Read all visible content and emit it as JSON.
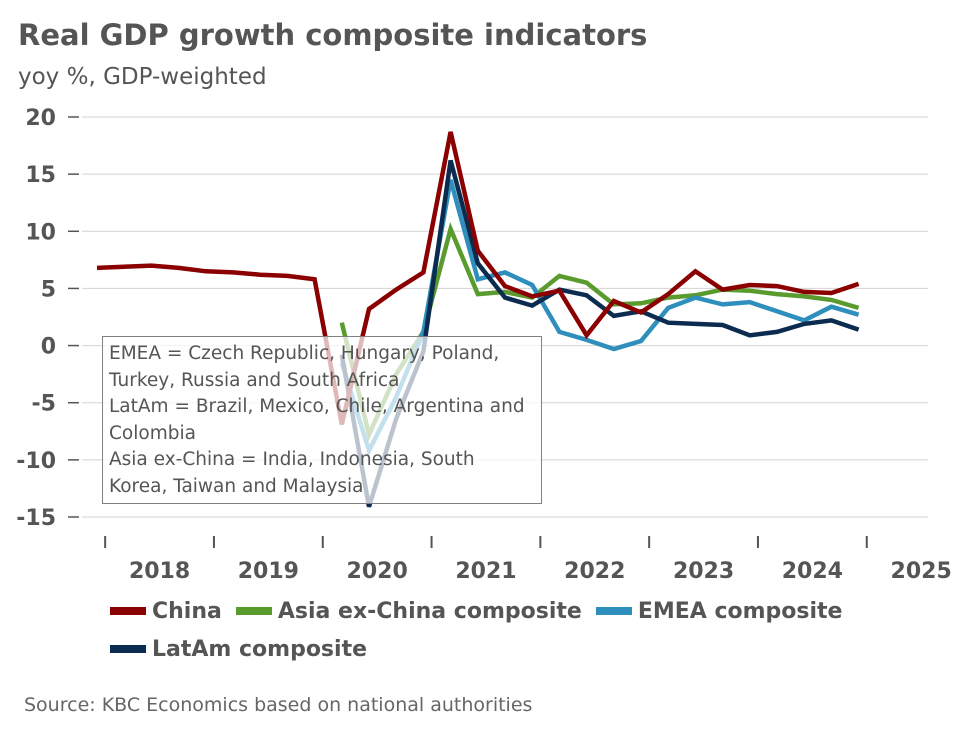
{
  "title": "Real GDP growth composite indicators",
  "subtitle": "yoy %, GDP-weighted",
  "source": "Source: KBC Economics based on national authorities",
  "note": [
    "EMEA = Czech Republic, Hungary, Poland,",
    "Turkey, Russia and South Africa",
    "LatAm = Brazil, Mexico, Chile, Argentina and",
    "Colombia",
    "Asia ex-China = India, Indonesia, South",
    "Korea, Taiwan and Malaysia"
  ],
  "chart_data": {
    "type": "line",
    "title": "Real GDP growth composite indicators",
    "subtitle": "yoy %, GDP-weighted",
    "ylim": [
      -15,
      20
    ],
    "yticks": [
      20,
      15,
      10,
      5,
      0,
      -5,
      -10,
      -15
    ],
    "ytick_labels": [
      "20",
      "15",
      "10",
      "5",
      "0",
      "-5",
      "-10",
      "-15"
    ],
    "x_labels": [
      "2018",
      "2019",
      "2020",
      "2021",
      "2022",
      "2023",
      "2024",
      "2025"
    ],
    "x_quarters": [
      "2017Q4",
      "2018Q1",
      "2018Q2",
      "2018Q3",
      "2018Q4",
      "2019Q1",
      "2019Q2",
      "2019Q3",
      "2019Q4",
      "2020Q1",
      "2020Q2",
      "2020Q3",
      "2020Q4",
      "2021Q1",
      "2021Q2",
      "2021Q3",
      "2021Q4",
      "2022Q1",
      "2022Q2",
      "2022Q3",
      "2022Q4",
      "2023Q1",
      "2023Q2",
      "2023Q3",
      "2023Q4",
      "2024Q1",
      "2024Q2",
      "2024Q3",
      "2024Q4"
    ],
    "grid": true,
    "legend_position": "bottom",
    "series": [
      {
        "name": "China",
        "color": "#8b0000",
        "values": [
          6.8,
          6.9,
          7.0,
          6.8,
          6.5,
          6.4,
          6.2,
          6.1,
          5.8,
          -6.9,
          3.2,
          4.9,
          6.4,
          18.7,
          8.3,
          5.2,
          4.3,
          4.8,
          0.9,
          3.9,
          2.9,
          4.5,
          6.5,
          4.9,
          5.3,
          5.2,
          4.7,
          4.6,
          5.4
        ]
      },
      {
        "name": "Asia ex-China composite",
        "color": "#5a9b2e",
        "values": [
          null,
          null,
          null,
          null,
          null,
          null,
          null,
          null,
          null,
          2.0,
          -7.8,
          -2.5,
          1.2,
          10.2,
          4.5,
          4.7,
          4.2,
          6.1,
          5.5,
          3.6,
          3.7,
          4.2,
          4.4,
          4.9,
          4.8,
          4.5,
          4.3,
          4.0,
          3.3
        ]
      },
      {
        "name": "EMEA composite",
        "color": "#2e8fbd",
        "values": [
          null,
          null,
          null,
          null,
          null,
          null,
          null,
          null,
          null,
          -1.5,
          -9.2,
          -4.5,
          1.2,
          14.5,
          5.8,
          6.4,
          5.3,
          1.2,
          0.5,
          -0.3,
          0.4,
          3.3,
          4.2,
          3.6,
          3.8,
          3.0,
          2.2,
          3.4,
          2.7
        ]
      },
      {
        "name": "LatAm composite",
        "color": "#0b2b4f",
        "values": [
          null,
          null,
          null,
          null,
          null,
          null,
          null,
          null,
          null,
          -0.8,
          -14.1,
          -6.4,
          -0.5,
          16.2,
          7.2,
          4.2,
          3.5,
          4.9,
          4.4,
          2.6,
          3.0,
          2.0,
          1.9,
          1.8,
          0.9,
          1.2,
          1.9,
          2.2,
          1.4
        ]
      }
    ]
  }
}
